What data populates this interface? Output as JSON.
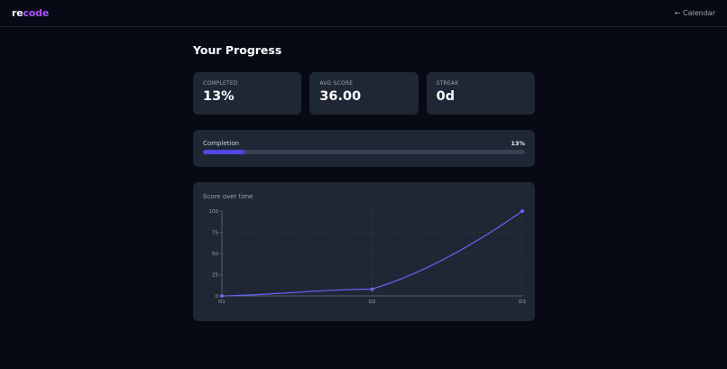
{
  "nav": {
    "logo_part1": "re",
    "logo_part2": "code",
    "back_link": "← Calendar"
  },
  "page": {
    "title": "Your Progress"
  },
  "stats": [
    {
      "label": "COMPLETED",
      "value": "13%"
    },
    {
      "label": "AVG SCORE",
      "value": "36.00"
    },
    {
      "label": "STREAK",
      "value": "0d"
    }
  ],
  "progress": {
    "label": "Completion",
    "percent_text": "13%",
    "percent": 13,
    "color": "#4f46e5"
  },
  "chart": {
    "title": "Score over time"
  },
  "chart_data": {
    "type": "line",
    "title": "Score over time",
    "categories": [
      "D1",
      "D2",
      "D3"
    ],
    "values": [
      0,
      8,
      100
    ],
    "ylim": [
      0,
      100
    ],
    "yticks": [
      0,
      25,
      50,
      75,
      100
    ],
    "grid": true,
    "line_color": "#6366f1",
    "xlabel": "",
    "ylabel": ""
  }
}
